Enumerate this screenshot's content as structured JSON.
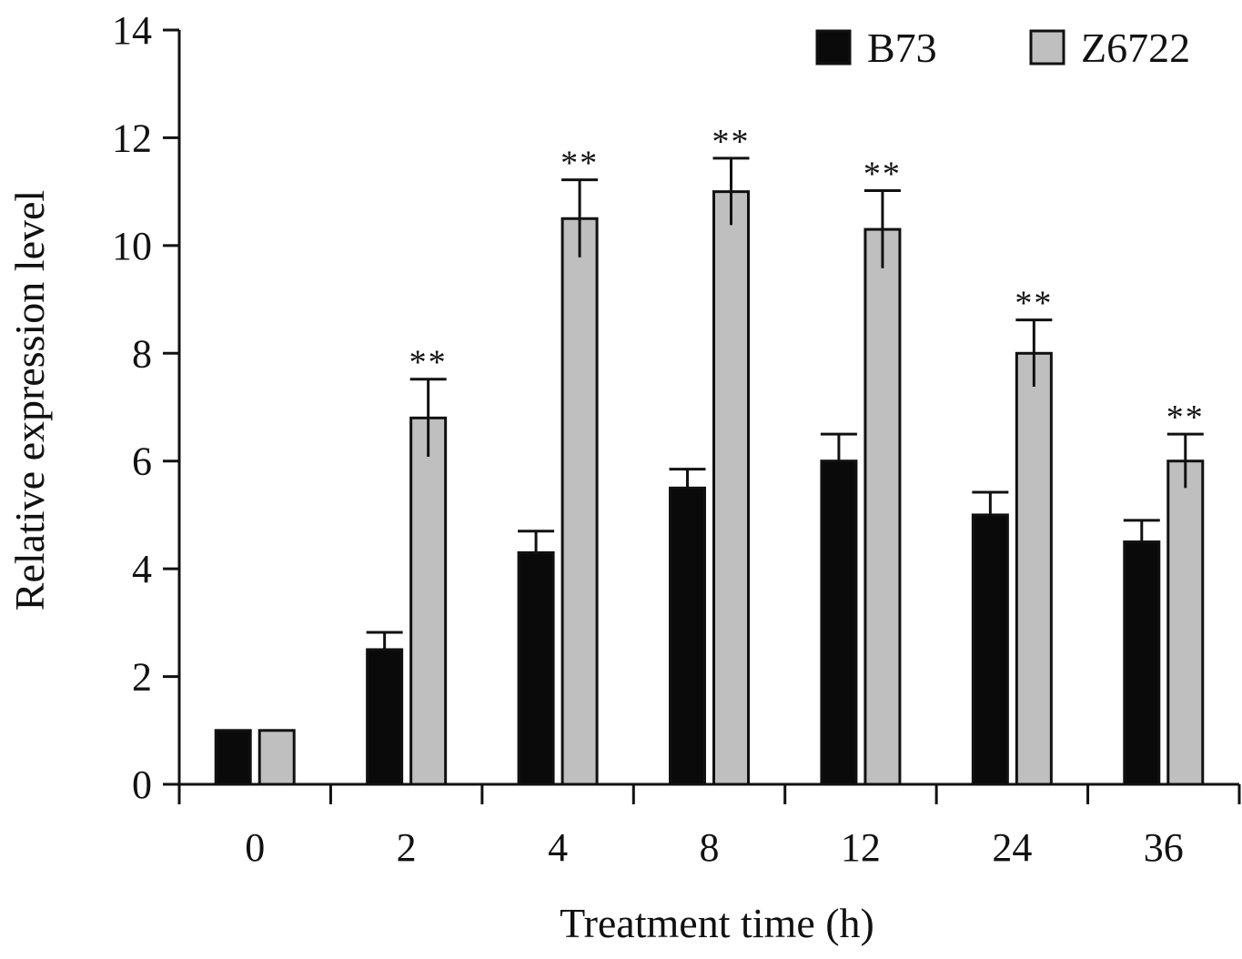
{
  "chart_data": {
    "type": "bar",
    "xlabel": "Treatment time (h)",
    "ylabel": "Relative expression level",
    "categories": [
      "0",
      "2",
      "4",
      "8",
      "12",
      "24",
      "36"
    ],
    "ylim": [
      0,
      14
    ],
    "yticks": [
      0,
      2,
      4,
      6,
      8,
      10,
      12,
      14
    ],
    "grid": false,
    "legend_position": "top-right",
    "series": [
      {
        "name": "B73",
        "color": "#0a0a0a",
        "values": [
          1.0,
          2.5,
          4.3,
          5.5,
          6.0,
          5.0,
          4.5
        ],
        "errors": [
          0.0,
          0.32,
          0.4,
          0.35,
          0.5,
          0.42,
          0.4
        ]
      },
      {
        "name": "Z6722",
        "color": "#bfbfbf",
        "values": [
          1.0,
          6.8,
          10.5,
          11.0,
          10.3,
          8.0,
          6.0
        ],
        "errors": [
          0.0,
          0.72,
          0.72,
          0.62,
          0.72,
          0.62,
          0.5
        ]
      }
    ],
    "annotations": [
      "",
      "**",
      "**",
      "**",
      "**",
      "**",
      "**"
    ]
  }
}
